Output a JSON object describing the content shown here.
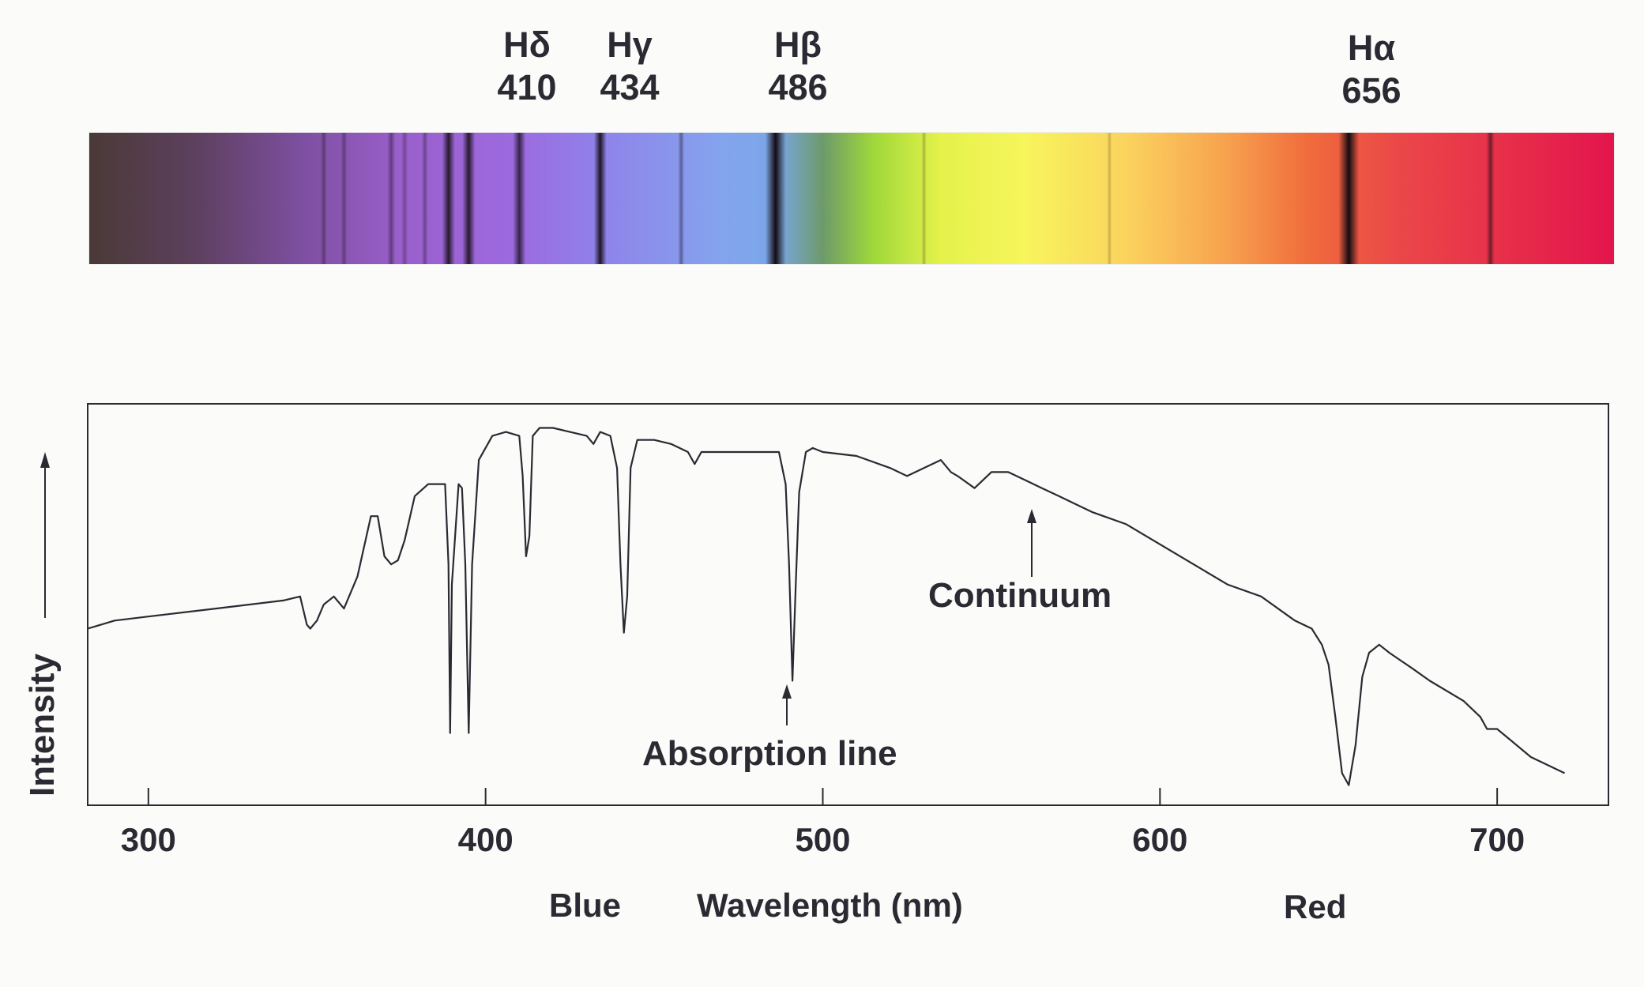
{
  "spectral_lines": [
    {
      "name": "Hδ",
      "wavelength": "410"
    },
    {
      "name": "Hγ",
      "wavelength": "434"
    },
    {
      "name": "Hβ",
      "wavelength": "486"
    },
    {
      "name": "Hα",
      "wavelength": "656"
    }
  ],
  "annotations": {
    "continuum": "Continuum",
    "absorption": "Absorption line",
    "blue": "Blue",
    "red": "Red"
  },
  "chart_data": {
    "type": "line",
    "title": "",
    "xlabel": "Wavelength (nm)",
    "ylabel": "Intensity",
    "xlim": [
      282,
      733
    ],
    "ylim": [
      0,
      100
    ],
    "x_ticks": [
      "300",
      "400",
      "500",
      "600",
      "700"
    ],
    "grid": false,
    "series": [
      {
        "color": "#2b2a33",
        "x": [
          282,
          290,
          300,
          320,
          340,
          345,
          347,
          348,
          350,
          352,
          355,
          358,
          362,
          366,
          368,
          370,
          372,
          374,
          376,
          379,
          383,
          388,
          389,
          389.5,
          390,
          392,
          393,
          394,
          395,
          396,
          398,
          402,
          406,
          410,
          411,
          412,
          413,
          414,
          416,
          420,
          425,
          430,
          432,
          434,
          437,
          439,
          440,
          441,
          442,
          443,
          445,
          450,
          455,
          460,
          462,
          464,
          466,
          470,
          480,
          487,
          489,
          490,
          491,
          492,
          493,
          495,
          497,
          500,
          510,
          520,
          525,
          530,
          535,
          538,
          540,
          545,
          550,
          555,
          560,
          565,
          570,
          575,
          580,
          590,
          600,
          610,
          620,
          630,
          640,
          645,
          648,
          650,
          652,
          654,
          656,
          658,
          660,
          662,
          665,
          668,
          675,
          680,
          690,
          695,
          697,
          700,
          710,
          720
        ],
        "y": [
          44,
          46,
          47,
          49,
          51,
          52,
          45,
          44,
          46,
          50,
          52,
          49,
          57,
          72,
          72,
          62,
          60,
          61,
          66,
          77,
          80,
          80,
          60,
          18,
          55,
          80,
          79,
          60,
          18,
          60,
          86,
          92,
          93,
          92,
          82,
          62,
          67,
          92,
          94,
          94,
          93,
          92,
          90,
          93,
          92,
          84,
          60,
          43,
          52,
          84,
          91,
          91,
          90,
          88,
          85,
          88,
          88,
          88,
          88,
          88,
          80,
          60,
          31,
          55,
          78,
          88,
          89,
          88,
          87,
          84,
          82,
          84,
          86,
          83,
          82,
          79,
          83,
          83,
          81,
          79,
          77,
          75,
          73,
          70,
          65,
          60,
          55,
          52,
          46,
          44,
          40,
          35,
          22,
          8,
          5,
          15,
          32,
          38,
          40,
          38,
          34,
          31,
          26,
          22,
          19,
          19,
          12,
          8
        ]
      }
    ],
    "line_markers": [
      {
        "name": "Hδ",
        "x": 410,
        "depth": 0.75
      },
      {
        "name": "Hγ",
        "x": 434,
        "depth": 0.9
      },
      {
        "name": "Hβ",
        "x": 486,
        "depth": 1.0
      },
      {
        "name": "Hα",
        "x": 656,
        "depth": 1.0
      },
      {
        "name": "",
        "x": 389,
        "depth": 0.85
      },
      {
        "name": "",
        "x": 395,
        "depth": 0.85
      }
    ]
  }
}
